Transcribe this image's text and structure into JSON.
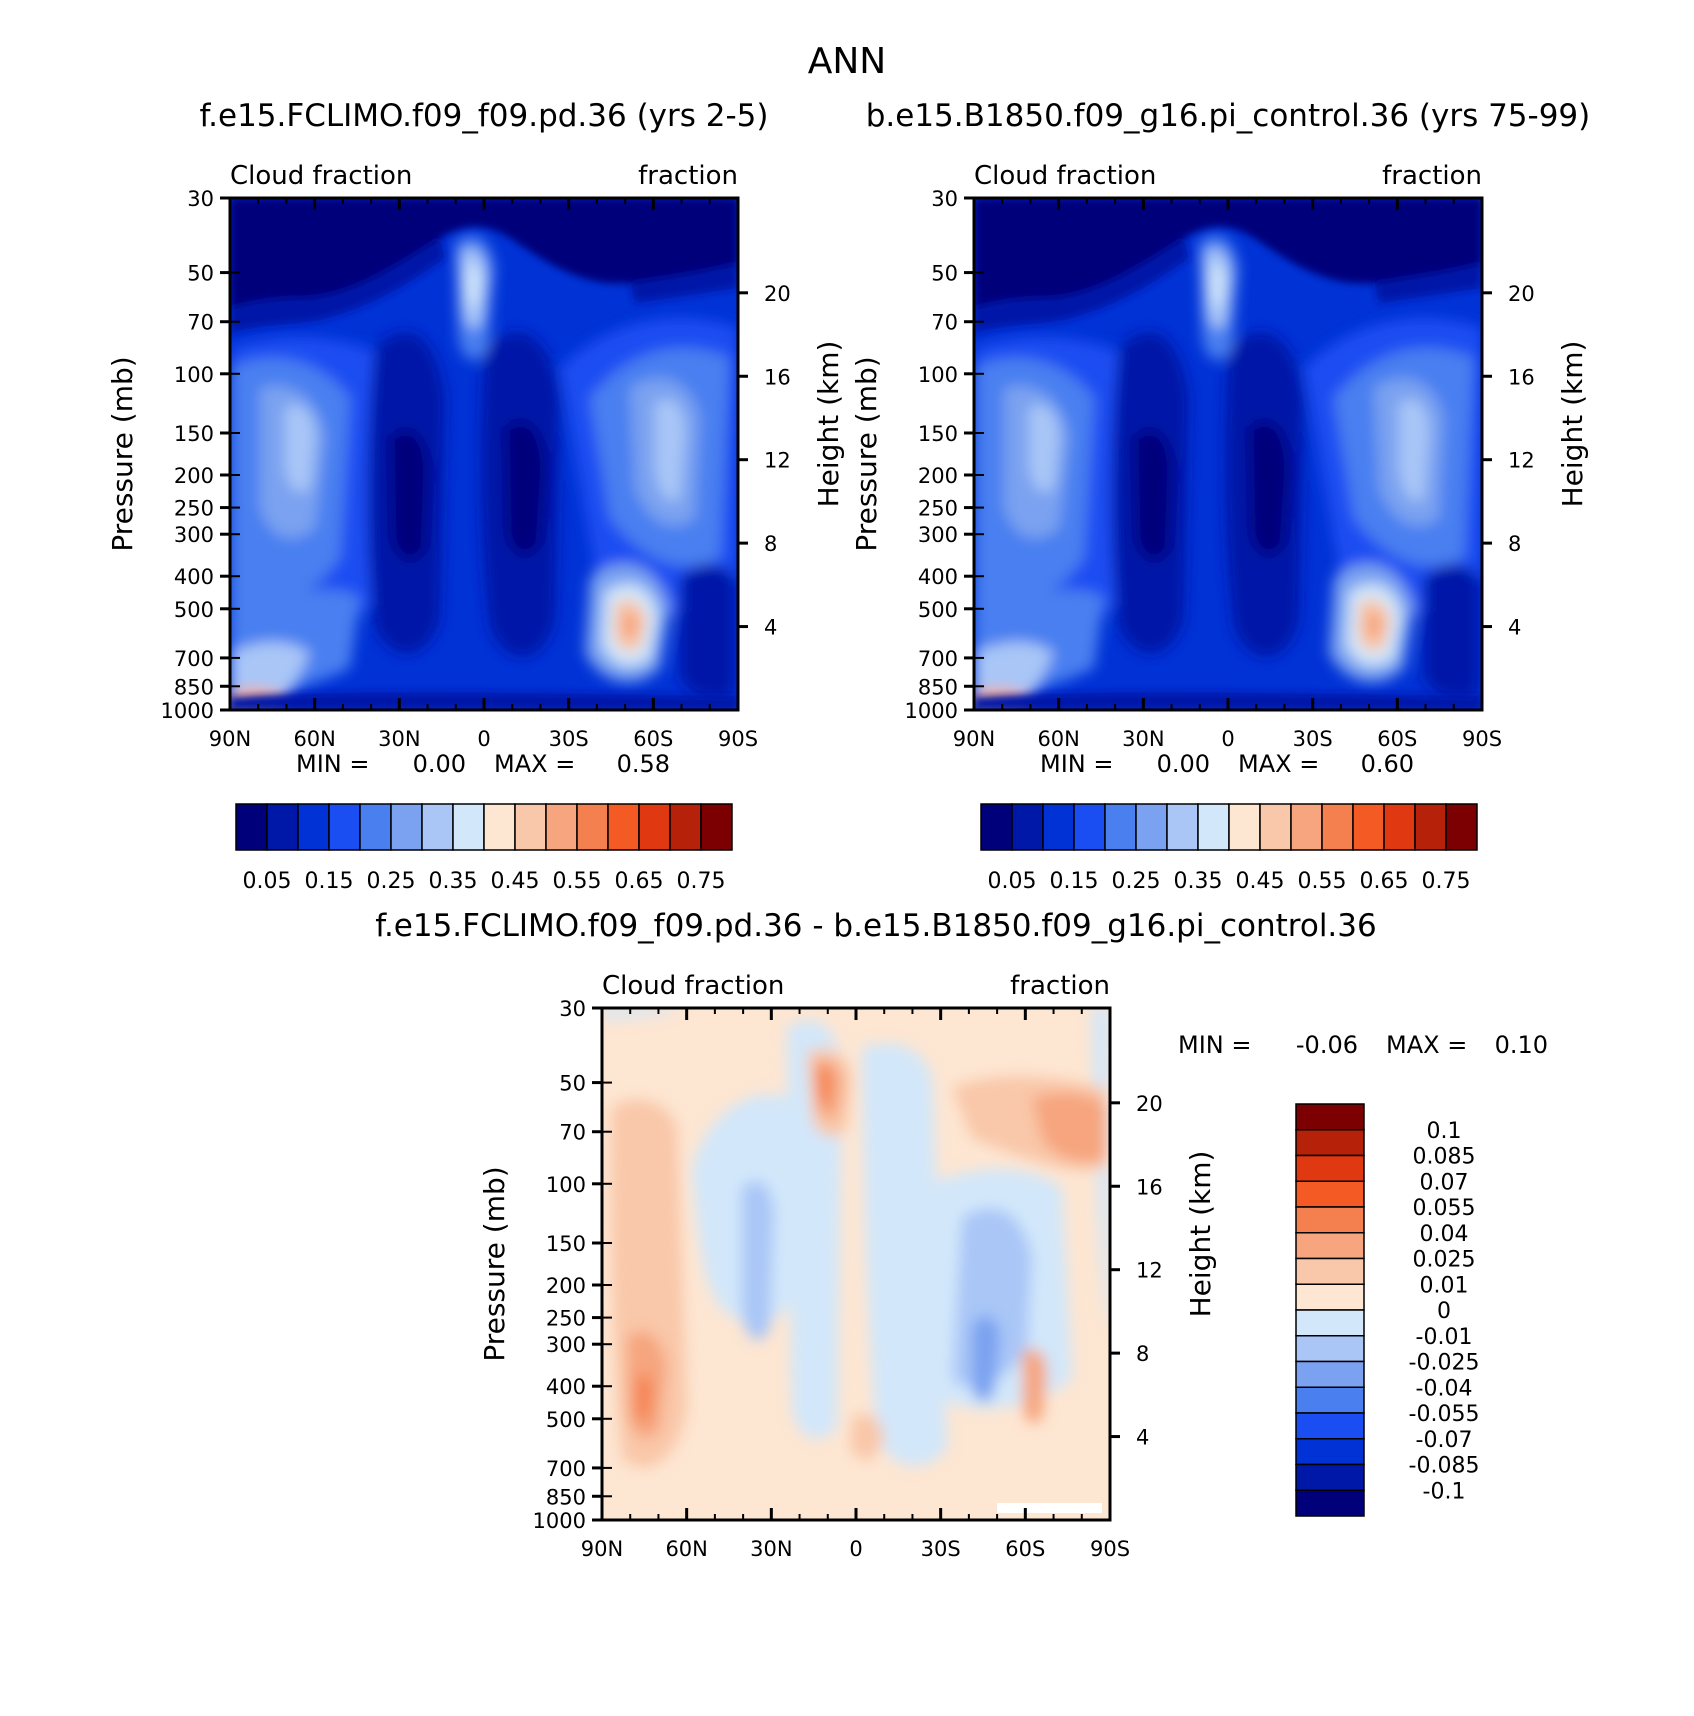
{
  "figure": {
    "title": "ANN"
  },
  "panels": [
    {
      "id": "a",
      "title": "f.e15.FCLIMO.f09_f09.pd.36 (yrs 2-5)",
      "left_label": "Cloud fraction",
      "right_label": "fraction",
      "ylabel": "Pressure (mb)",
      "y2label": "Height (km)",
      "minmax": {
        "min_label": "MIN =",
        "min": "0.00",
        "max_label": "MAX =",
        "max": "0.58"
      },
      "colorbar": "seq"
    },
    {
      "id": "b",
      "title": "b.e15.B1850.f09_g16.pi_control.36 (yrs 75-99)",
      "left_label": "Cloud fraction",
      "right_label": "fraction",
      "ylabel": "Pressure (mb)",
      "y2label": "Height (km)",
      "minmax": {
        "min_label": "MIN =",
        "min": "0.00",
        "max_label": "MAX =",
        "max": "0.60"
      },
      "colorbar": "seq"
    },
    {
      "id": "c",
      "title": "f.e15.FCLIMO.f09_f09.pd.36 - b.e15.B1850.f09_g16.pi_control.36",
      "left_label": "Cloud fraction",
      "right_label": "fraction",
      "ylabel": "Pressure (mb)",
      "y2label": "Height (km)",
      "minmax": {
        "min_label": "MIN =",
        "min": "-0.06",
        "max_label": "MAX =",
        "max": "0.10"
      },
      "colorbar": "div"
    }
  ],
  "axes": {
    "x_ticks": [
      "90N",
      "60N",
      "30N",
      "0",
      "30S",
      "60S",
      "90S"
    ],
    "y_ticks": [
      "30",
      "50",
      "70",
      "100",
      "150",
      "200",
      "250",
      "300",
      "400",
      "500",
      "700",
      "850",
      "1000"
    ],
    "y2_ticks": [
      "20",
      "16",
      "12",
      "8",
      "4"
    ]
  },
  "colorbars": {
    "seq": {
      "orientation": "horizontal",
      "colors": [
        "#00007a",
        "#0018a8",
        "#0032d6",
        "#1a4ef2",
        "#4a7ff0",
        "#7aa2f0",
        "#a9c6f7",
        "#d2e7fa",
        "#fde6d2",
        "#f9c7a9",
        "#f6a57e",
        "#f5804f",
        "#f45a23",
        "#e03912",
        "#b52209",
        "#7c0002"
      ],
      "labels": [
        "0.05",
        "0.15",
        "0.25",
        "0.35",
        "0.45",
        "0.55",
        "0.65",
        "0.75"
      ]
    },
    "div": {
      "orientation": "vertical",
      "colors": [
        "#7c0002",
        "#b52209",
        "#e03912",
        "#f45a23",
        "#f5804f",
        "#f6a57e",
        "#f9c7a9",
        "#fde6d2",
        "#d2e7fa",
        "#a9c6f7",
        "#7aa2f0",
        "#4a7ff0",
        "#1a4ef2",
        "#0032d6",
        "#0018a8",
        "#00007a"
      ],
      "labels": [
        "0.1",
        "0.085",
        "0.07",
        "0.055",
        "0.04",
        "0.025",
        "0.01",
        "0",
        "-0.01",
        "-0.025",
        "-0.04",
        "-0.055",
        "-0.07",
        "-0.085",
        "-0.1"
      ]
    }
  },
  "chart_data": [
    {
      "type": "heatmap",
      "title": "f.e15.FCLIMO.f09_f09.pd.36 (yrs 2-5)",
      "xlabel": "",
      "ylabel": "Pressure (mb)",
      "x": [
        "90N",
        "60N",
        "30N",
        "0",
        "30S",
        "60S",
        "90S"
      ],
      "y": [
        1000,
        850,
        700,
        500,
        400,
        300,
        250,
        200,
        150,
        100,
        70,
        50,
        30
      ],
      "ylim": [
        1000,
        30
      ],
      "levels": [
        0.05,
        0.1,
        0.15,
        0.2,
        0.25,
        0.3,
        0.35,
        0.4,
        0.45,
        0.5,
        0.55,
        0.6,
        0.65,
        0.7,
        0.75
      ],
      "min": 0.0,
      "max": 0.58
    },
    {
      "type": "heatmap",
      "title": "b.e15.B1850.f09_g16.pi_control.36 (yrs 75-99)",
      "xlabel": "",
      "ylabel": "Pressure (mb)",
      "x": [
        "90N",
        "60N",
        "30N",
        "0",
        "30S",
        "60S",
        "90S"
      ],
      "y": [
        1000,
        850,
        700,
        500,
        400,
        300,
        250,
        200,
        150,
        100,
        70,
        50,
        30
      ],
      "ylim": [
        1000,
        30
      ],
      "levels": [
        0.05,
        0.1,
        0.15,
        0.2,
        0.25,
        0.3,
        0.35,
        0.4,
        0.45,
        0.5,
        0.55,
        0.6,
        0.65,
        0.7,
        0.75
      ],
      "min": 0.0,
      "max": 0.6
    },
    {
      "type": "heatmap",
      "title": "f.e15.FCLIMO.f09_f09.pd.36 - b.e15.B1850.f09_g16.pi_control.36",
      "xlabel": "",
      "ylabel": "Pressure (mb)",
      "x": [
        "90N",
        "60N",
        "30N",
        "0",
        "30S",
        "60S",
        "90S"
      ],
      "y": [
        1000,
        850,
        700,
        500,
        400,
        300,
        250,
        200,
        150,
        100,
        70,
        50,
        30
      ],
      "ylim": [
        1000,
        30
      ],
      "levels": [
        -0.1,
        -0.085,
        -0.07,
        -0.055,
        -0.04,
        -0.025,
        -0.01,
        0,
        0.01,
        0.025,
        0.04,
        0.055,
        0.07,
        0.085,
        0.1
      ],
      "min": -0.06,
      "max": 0.1
    }
  ]
}
